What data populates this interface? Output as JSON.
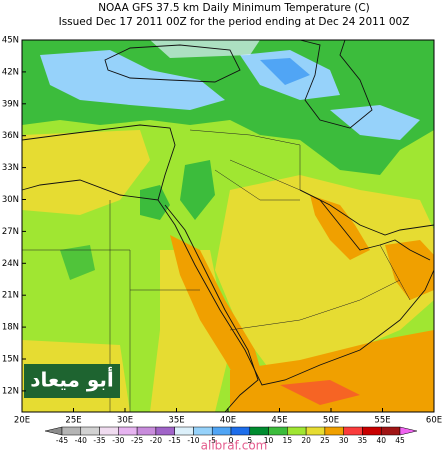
{
  "header": {
    "title_line1": "NOAA GFS 37.5 km Daily Minimum Temperature (C)",
    "title_line2": "Issued Dec 17 2011 00Z for the period ending at Dec 24 2011 00Z"
  },
  "map": {
    "lat_labels": [
      "45N",
      "42N",
      "39N",
      "36N",
      "33N",
      "30N",
      "27N",
      "24N",
      "21N",
      "18N",
      "15N",
      "12N"
    ],
    "lon_labels": [
      "20E",
      "25E",
      "30E",
      "35E",
      "40E",
      "45E",
      "50E",
      "55E",
      "60E"
    ]
  },
  "colorbar": {
    "labels": [
      -45,
      -40,
      -35,
      -30,
      -25,
      -20,
      -15,
      -10,
      -5,
      0,
      5,
      10,
      15,
      20,
      25,
      30,
      35,
      40,
      45
    ]
  },
  "watermark": {
    "logo_text": "أبو ميعاد",
    "site_text": "alibraf.com"
  }
}
